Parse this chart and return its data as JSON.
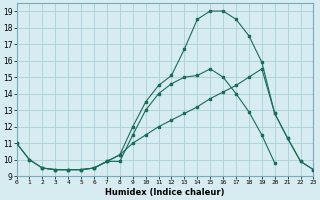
{
  "xlabel": "Humidex (Indice chaleur)",
  "background_color": "#d6ecf0",
  "grid_color": "#a8d0d8",
  "line_color": "#1a6b5a",
  "xlim": [
    0,
    23
  ],
  "ylim": [
    9,
    19.5
  ],
  "xticks": [
    0,
    1,
    2,
    3,
    4,
    5,
    6,
    7,
    8,
    9,
    10,
    11,
    12,
    13,
    14,
    15,
    16,
    17,
    18,
    19,
    20,
    21,
    22,
    23
  ],
  "yticks": [
    9,
    10,
    11,
    12,
    13,
    14,
    15,
    16,
    17,
    18,
    19
  ],
  "line_main_x": [
    0,
    1,
    2,
    3,
    4,
    5,
    6,
    7,
    8,
    9,
    10,
    11,
    12,
    13,
    14,
    15,
    16,
    17,
    18,
    19,
    20,
    21,
    22,
    23
  ],
  "line_main_y": [
    11,
    10,
    9.5,
    9.4,
    9.4,
    9.4,
    9.5,
    9.9,
    10.3,
    12.0,
    13.5,
    14.5,
    15.1,
    16.7,
    18.5,
    19.0,
    19.0,
    18.5,
    17.5,
    15.9,
    12.8,
    11.3,
    9.9,
    9.4
  ],
  "line_mid_x": [
    0,
    1,
    2,
    3,
    4,
    5,
    6,
    7,
    8,
    9,
    10,
    11,
    12,
    13,
    14,
    15,
    16,
    17,
    18,
    19,
    20
  ],
  "line_mid_y": [
    11,
    10,
    9.5,
    9.4,
    9.4,
    9.4,
    9.5,
    9.9,
    9.9,
    11.5,
    13.0,
    14.0,
    14.6,
    15.0,
    15.1,
    15.5,
    15.0,
    14.0,
    12.9,
    11.5,
    9.8
  ],
  "line_low_x": [
    2,
    3,
    4,
    5,
    6,
    7,
    8,
    9,
    10,
    11,
    12,
    13,
    14,
    15,
    16,
    17,
    18,
    19,
    20,
    21,
    22,
    23
  ],
  "line_low_y": [
    9.5,
    9.4,
    9.4,
    9.4,
    9.5,
    9.9,
    10.3,
    11.0,
    11.5,
    12.0,
    12.4,
    12.8,
    13.2,
    13.7,
    14.1,
    14.5,
    15.0,
    15.5,
    12.8,
    11.3,
    9.9,
    9.4
  ]
}
